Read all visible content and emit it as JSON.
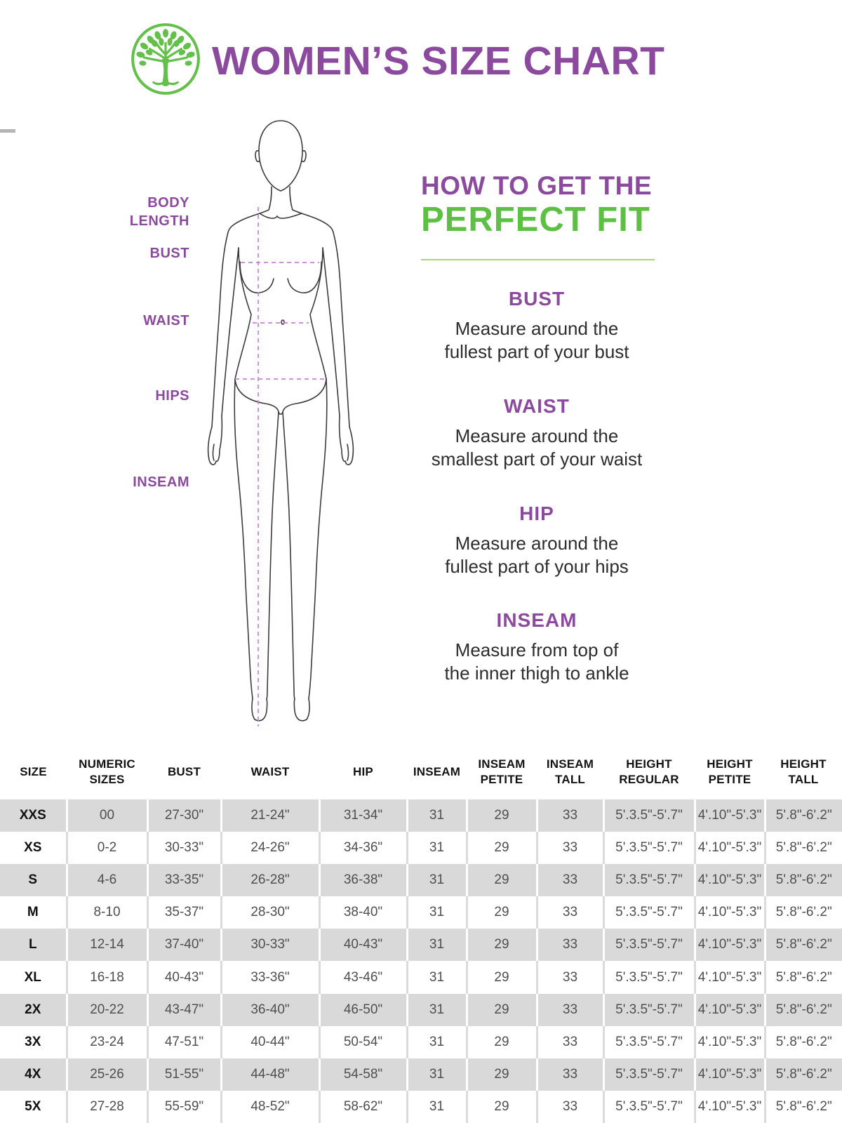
{
  "header": {
    "title": "WOMEN’S SIZE CHART",
    "logo": "tree-logo"
  },
  "colors": {
    "accent_purple": "#8c4a9e",
    "accent_green": "#5dc044",
    "logo_green": "#63c04a",
    "dashed_line_purple": "#c883d4",
    "table_shade_gray": "#d9d9d9"
  },
  "figure": {
    "labels": {
      "body_length": "BODY\nLENGTH",
      "bust": "BUST",
      "waist": "WAIST",
      "hips": "HIPS",
      "inseam": "INSEAM"
    }
  },
  "guide": {
    "title_line1": "HOW TO GET THE",
    "title_line2": "PERFECT FIT",
    "sections": [
      {
        "heading": "BUST",
        "text": "Measure around the\nfullest part of your bust"
      },
      {
        "heading": "WAIST",
        "text": "Measure around the\nsmallest part of your waist"
      },
      {
        "heading": "HIP",
        "text": "Measure around the\nfullest part of your hips"
      },
      {
        "heading": "INSEAM",
        "text": "Measure from top of\nthe inner thigh to ankle"
      }
    ]
  },
  "table": {
    "columns": [
      {
        "label": "SIZE"
      },
      {
        "label": "NUMERIC\nSIZES"
      },
      {
        "label": "BUST"
      },
      {
        "label": "WAIST"
      },
      {
        "label": "HIP"
      },
      {
        "label": "INSEAM"
      },
      {
        "label": "INSEAM\nPETITE"
      },
      {
        "label": "INSEAM\nTALL"
      },
      {
        "label": "HEIGHT\nREGULAR"
      },
      {
        "label": "HEIGHT\nPETITE"
      },
      {
        "label": "HEIGHT\nTALL"
      }
    ],
    "rows": [
      {
        "size": "XXS",
        "values": [
          "00",
          "27-30\"",
          "21-24\"",
          "31-34\"",
          "31",
          "29",
          "33",
          "5'.3.5\"-5'.7\"",
          "4'.10\"-5'.3\"",
          "5'.8\"-6'.2\""
        ]
      },
      {
        "size": "XS",
        "values": [
          "0-2",
          "30-33\"",
          "24-26\"",
          "34-36\"",
          "31",
          "29",
          "33",
          "5'.3.5\"-5'.7\"",
          "4'.10\"-5'.3\"",
          "5'.8\"-6'.2\""
        ]
      },
      {
        "size": "S",
        "values": [
          "4-6",
          "33-35\"",
          "26-28\"",
          "36-38\"",
          "31",
          "29",
          "33",
          "5'.3.5\"-5'.7\"",
          "4'.10\"-5'.3\"",
          "5'.8\"-6'.2\""
        ]
      },
      {
        "size": "M",
        "values": [
          "8-10",
          "35-37\"",
          "28-30\"",
          "38-40\"",
          "31",
          "29",
          "33",
          "5'.3.5\"-5'.7\"",
          "4'.10\"-5'.3\"",
          "5'.8\"-6'.2\""
        ]
      },
      {
        "size": "L",
        "values": [
          "12-14",
          "37-40\"",
          "30-33\"",
          "40-43\"",
          "31",
          "29",
          "33",
          "5'.3.5\"-5'.7\"",
          "4'.10\"-5'.3\"",
          "5'.8\"-6'.2\""
        ]
      },
      {
        "size": "XL",
        "values": [
          "16-18",
          "40-43\"",
          "33-36\"",
          "43-46\"",
          "31",
          "29",
          "33",
          "5'.3.5\"-5'.7\"",
          "4'.10\"-5'.3\"",
          "5'.8\"-6'.2\""
        ]
      },
      {
        "size": "2X",
        "values": [
          "20-22",
          "43-47\"",
          "36-40\"",
          "46-50\"",
          "31",
          "29",
          "33",
          "5'.3.5\"-5'.7\"",
          "4'.10\"-5'.3\"",
          "5'.8\"-6'.2\""
        ]
      },
      {
        "size": "3X",
        "values": [
          "23-24",
          "47-51\"",
          "40-44\"",
          "50-54\"",
          "31",
          "29",
          "33",
          "5'.3.5\"-5'.7\"",
          "4'.10\"-5'.3\"",
          "5'.8\"-6'.2\""
        ]
      },
      {
        "size": "4X",
        "values": [
          "25-26",
          "51-55\"",
          "44-48\"",
          "54-58\"",
          "31",
          "29",
          "33",
          "5'.3.5\"-5'.7\"",
          "4'.10\"-5'.3\"",
          "5'.8\"-6'.2\""
        ]
      },
      {
        "size": "5X",
        "values": [
          "27-28",
          "55-59\"",
          "48-52\"",
          "58-62\"",
          "31",
          "29",
          "33",
          "5'.3.5\"-5'.7\"",
          "4'.10\"-5'.3\"",
          "5'.8\"-6'.2\""
        ]
      }
    ]
  }
}
